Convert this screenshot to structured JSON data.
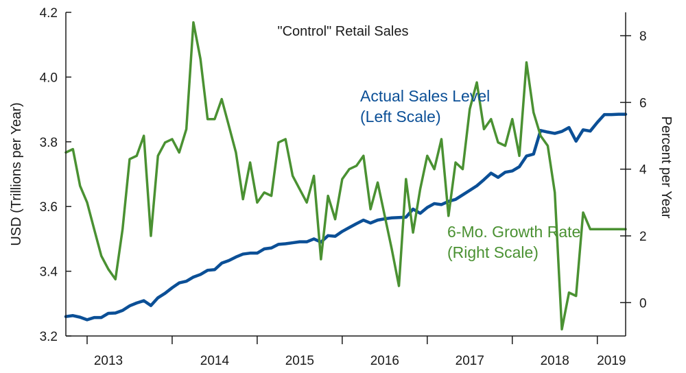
{
  "chart_data": {
    "type": "line",
    "title": "\"Control\" Retail Sales",
    "ylabel_left": "USD (Trillions per Year)",
    "ylabel_right": "Percent per Year",
    "ylim_left": [
      3.2,
      4.2
    ],
    "ylim_right": [
      -1.0,
      8.7
    ],
    "left_ticks": [
      "3.2",
      "3.4",
      "3.6",
      "3.8",
      "4.0",
      "4.2"
    ],
    "right_ticks": [
      "0",
      "2",
      "4",
      "6",
      "8"
    ],
    "x_labels": [
      "2013",
      "2014",
      "2015",
      "2016",
      "2017",
      "2018",
      "2019"
    ],
    "x_start": 2012.75,
    "x_end": 2019.333,
    "colors": {
      "level": "#0b4f96",
      "growth": "#4a9132",
      "axis": "#1a1a1a"
    },
    "series": [
      {
        "name": "Actual Sales Level",
        "label_lines": [
          "Actual Sales Level",
          "(Left Scale)"
        ],
        "axis": "left",
        "x": [
          2012.75,
          2012.833,
          2012.917,
          2013.0,
          2013.083,
          2013.167,
          2013.25,
          2013.333,
          2013.417,
          2013.5,
          2013.583,
          2013.667,
          2013.75,
          2013.833,
          2013.917,
          2014.0,
          2014.083,
          2014.167,
          2014.25,
          2014.333,
          2014.417,
          2014.5,
          2014.583,
          2014.667,
          2014.75,
          2014.833,
          2014.917,
          2015.0,
          2015.083,
          2015.167,
          2015.25,
          2015.333,
          2015.417,
          2015.5,
          2015.583,
          2015.667,
          2015.75,
          2015.833,
          2015.917,
          2016.0,
          2016.083,
          2016.167,
          2016.25,
          2016.333,
          2016.417,
          2016.5,
          2016.583,
          2016.667,
          2016.75,
          2016.833,
          2016.917,
          2017.0,
          2017.083,
          2017.167,
          2017.25,
          2017.333,
          2017.417,
          2017.5,
          2017.583,
          2017.667,
          2017.75,
          2017.833,
          2017.917,
          2018.0,
          2018.083,
          2018.167,
          2018.25,
          2018.333,
          2018.417,
          2018.5,
          2018.583,
          2018.667,
          2018.75,
          2018.833,
          2018.917,
          2019.0,
          2019.083,
          2019.167,
          2019.25,
          2019.333
        ],
        "values": [
          3.26,
          3.263,
          3.258,
          3.25,
          3.257,
          3.257,
          3.27,
          3.271,
          3.279,
          3.293,
          3.302,
          3.309,
          3.294,
          3.318,
          3.332,
          3.349,
          3.364,
          3.369,
          3.382,
          3.39,
          3.403,
          3.405,
          3.425,
          3.433,
          3.444,
          3.453,
          3.456,
          3.456,
          3.469,
          3.472,
          3.483,
          3.485,
          3.488,
          3.491,
          3.491,
          3.5,
          3.49,
          3.51,
          3.508,
          3.523,
          3.535,
          3.547,
          3.558,
          3.549,
          3.558,
          3.562,
          3.565,
          3.566,
          3.567,
          3.592,
          3.579,
          3.597,
          3.609,
          3.606,
          3.616,
          3.622,
          3.636,
          3.65,
          3.664,
          3.683,
          3.703,
          3.69,
          3.706,
          3.71,
          3.723,
          3.756,
          3.762,
          3.835,
          3.83,
          3.826,
          3.832,
          3.844,
          3.802,
          3.837,
          3.833,
          3.86,
          3.884,
          3.884,
          3.885,
          3.885
        ]
      },
      {
        "name": "6-Mo. Growth Rate",
        "label_lines": [
          "6-Mo. Growth Rate",
          "(Right Scale)"
        ],
        "axis": "right",
        "x": [
          2012.75,
          2012.833,
          2012.917,
          2013.0,
          2013.083,
          2013.167,
          2013.25,
          2013.333,
          2013.417,
          2013.5,
          2013.583,
          2013.667,
          2013.75,
          2013.833,
          2013.917,
          2014.0,
          2014.083,
          2014.167,
          2014.25,
          2014.333,
          2014.417,
          2014.5,
          2014.583,
          2014.667,
          2014.75,
          2014.833,
          2014.917,
          2015.0,
          2015.083,
          2015.167,
          2015.25,
          2015.333,
          2015.417,
          2015.5,
          2015.583,
          2015.667,
          2015.75,
          2015.833,
          2015.917,
          2016.0,
          2016.083,
          2016.167,
          2016.25,
          2016.333,
          2016.417,
          2016.5,
          2016.583,
          2016.667,
          2016.75,
          2016.833,
          2016.917,
          2017.0,
          2017.083,
          2017.167,
          2017.25,
          2017.333,
          2017.417,
          2017.5,
          2017.583,
          2017.667,
          2017.75,
          2017.833,
          2017.917,
          2018.0,
          2018.083,
          2018.167,
          2018.25,
          2018.333,
          2018.417,
          2018.5,
          2018.583,
          2018.667,
          2018.75,
          2018.833,
          2018.917,
          2019.0,
          2019.083,
          2019.167,
          2019.25,
          2019.333
        ],
        "values": [
          4.5,
          4.6,
          3.5,
          3.0,
          2.2,
          1.4,
          1.0,
          0.7,
          2.2,
          4.3,
          4.4,
          5.0,
          2.0,
          4.4,
          4.8,
          4.9,
          4.5,
          5.2,
          8.4,
          7.3,
          5.5,
          5.5,
          6.1,
          5.3,
          4.5,
          3.1,
          4.2,
          3.0,
          3.3,
          3.2,
          4.8,
          4.9,
          3.8,
          3.4,
          3.0,
          3.8,
          1.3,
          3.2,
          2.5,
          3.7,
          4.0,
          4.1,
          4.4,
          2.8,
          3.6,
          2.6,
          1.6,
          0.5,
          3.7,
          2.1,
          3.4,
          4.4,
          4.0,
          4.9,
          2.6,
          4.2,
          4.0,
          5.8,
          6.6,
          5.2,
          5.5,
          4.8,
          4.7,
          5.5,
          4.4,
          7.2,
          5.7,
          5.0,
          4.7,
          3.3,
          -0.8,
          0.3,
          0.2,
          2.7,
          2.2,
          2.2,
          2.2,
          2.2,
          2.2,
          2.2
        ]
      }
    ]
  }
}
